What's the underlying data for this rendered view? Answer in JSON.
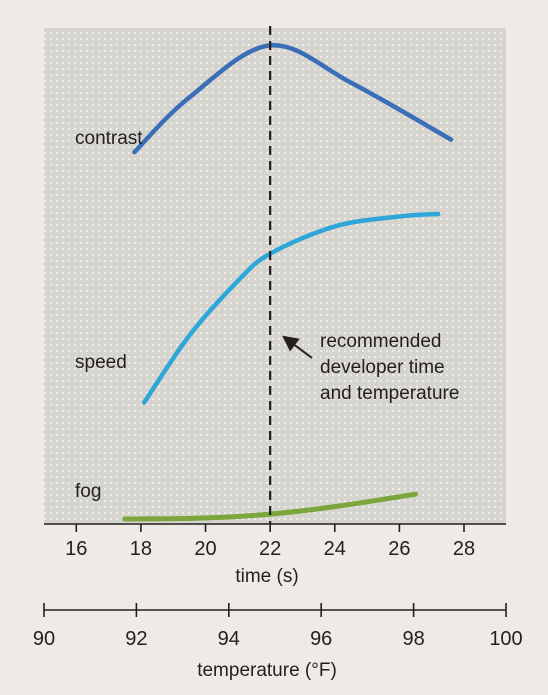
{
  "chart_data": {
    "type": "line",
    "series": [
      {
        "name": "contrast",
        "color": "#3a6fb8",
        "points": [
          [
            17.8,
            0.75
          ],
          [
            19.5,
            0.86
          ],
          [
            22.0,
            0.965
          ],
          [
            24.5,
            0.89
          ],
          [
            27.6,
            0.775
          ]
        ]
      },
      {
        "name": "speed",
        "color": "#2fa6d8",
        "points": [
          [
            18.1,
            0.245
          ],
          [
            19.5,
            0.38
          ],
          [
            21.0,
            0.49
          ],
          [
            22.0,
            0.545
          ],
          [
            24.0,
            0.6
          ],
          [
            26.0,
            0.62
          ],
          [
            27.2,
            0.625
          ]
        ]
      },
      {
        "name": "fog",
        "color": "#7aa63c",
        "points": [
          [
            17.5,
            0.01
          ],
          [
            20.0,
            0.012
          ],
          [
            22.0,
            0.02
          ],
          [
            24.0,
            0.035
          ],
          [
            26.5,
            0.06
          ]
        ]
      }
    ],
    "x_axis": {
      "label": "time (s)",
      "ticks": [
        16,
        18,
        20,
        22,
        24,
        26,
        28
      ],
      "range": [
        15.0,
        29.3
      ]
    },
    "y_range": [
      0,
      1
    ],
    "temperature_axis": {
      "label": "temperature (°F)",
      "ticks": [
        90,
        92,
        94,
        96,
        98,
        100
      ],
      "range": [
        90,
        100
      ]
    },
    "reference_line": {
      "x": 22
    },
    "annotation": {
      "lines": [
        "recommended",
        "developer time",
        "and temperature"
      ],
      "arrow_target": [
        22.1,
        0.39
      ]
    },
    "background_color": "#d6d4cf",
    "grid": "dotted"
  }
}
